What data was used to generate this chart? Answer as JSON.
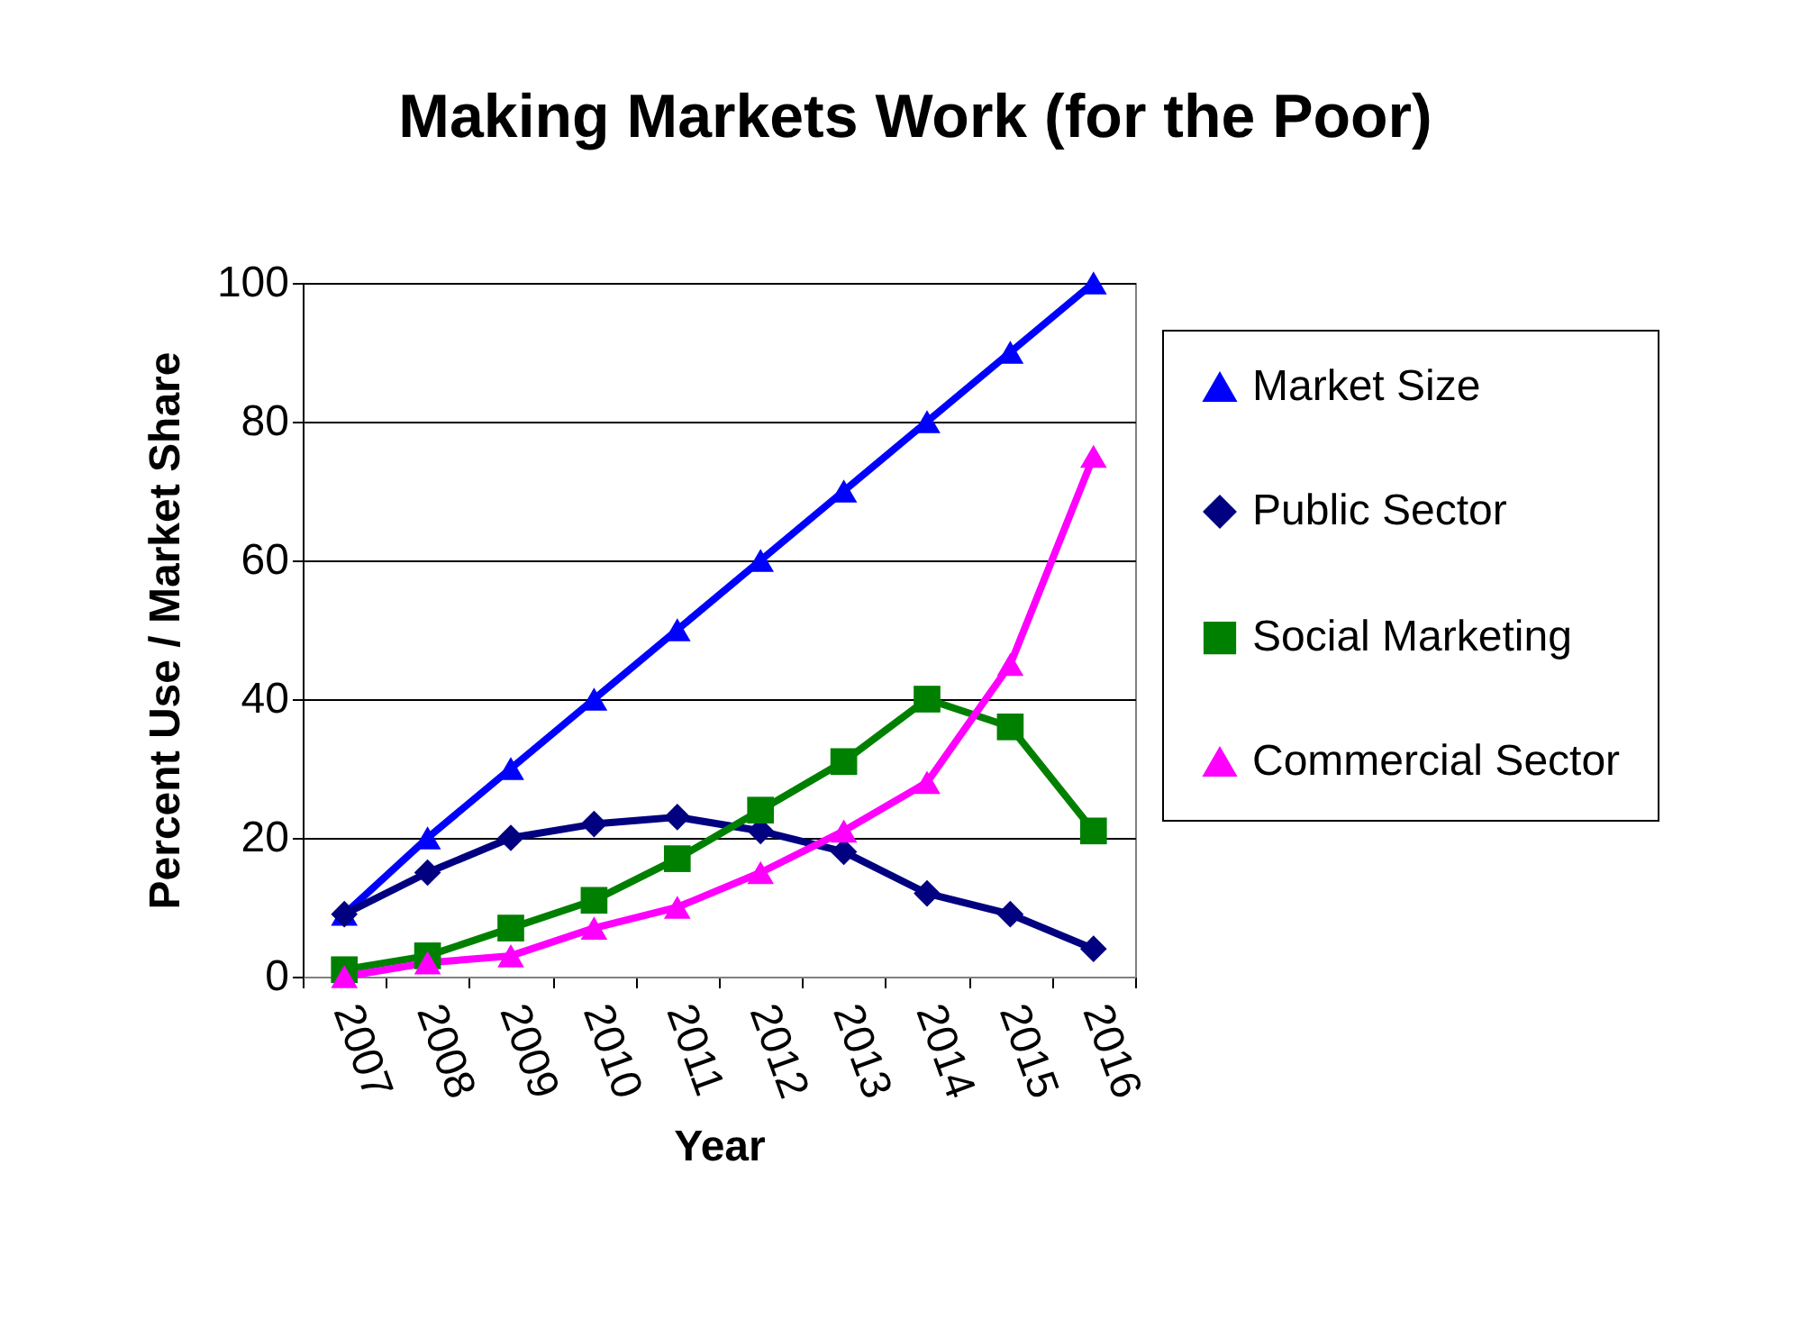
{
  "chart_data": {
    "type": "line",
    "title": "Making Markets Work (for the Poor)",
    "xlabel": "Year",
    "ylabel": "Percent Use / Market Share",
    "categories": [
      "2007",
      "2008",
      "2009",
      "2010",
      "2011",
      "2012",
      "2013",
      "2014",
      "2015",
      "2016"
    ],
    "series": [
      {
        "name": "Market Size",
        "color": "#0000ff",
        "marker": "triangle",
        "values": [
          9,
          20,
          30,
          40,
          50,
          60,
          70,
          80,
          90,
          100
        ]
      },
      {
        "name": "Public Sector",
        "color": "#000080",
        "marker": "diamond",
        "values": [
          9,
          15,
          20,
          22,
          23,
          21,
          18,
          12,
          9,
          4
        ]
      },
      {
        "name": "Social Marketing",
        "color": "#008000",
        "marker": "square",
        "values": [
          1,
          3,
          7,
          11,
          17,
          24,
          31,
          40,
          36,
          21
        ]
      },
      {
        "name": "Commercial Sector",
        "color": "#ff00ff",
        "marker": "triangle",
        "values": [
          0,
          2,
          3,
          7,
          10,
          15,
          21,
          28,
          45,
          75
        ]
      }
    ],
    "ylim": [
      0,
      100
    ],
    "yticks": [
      0,
      20,
      40,
      60,
      80,
      100
    ],
    "grid": "y",
    "legend": "right",
    "line_style": "solid"
  }
}
